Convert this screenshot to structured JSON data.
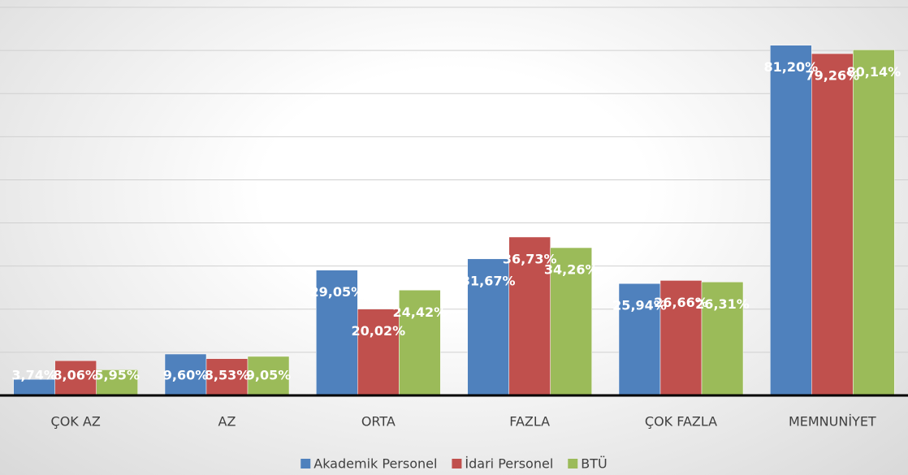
{
  "chart_data": {
    "type": "bar",
    "categories": [
      "ÇOK AZ",
      "AZ",
      "ORTA",
      "FAZLA",
      "ÇOK FAZLA",
      "MEMNUNİYET"
    ],
    "series": [
      {
        "name": "Akademik Personel",
        "color": "#4f81bd",
        "values": [
          3.74,
          9.6,
          29.05,
          31.67,
          25.94,
          81.2
        ],
        "value_labels": [
          "3,74%",
          "9,60%",
          "29,05%",
          "31,67%",
          "25,94%",
          "81,20%"
        ]
      },
      {
        "name": "İdari Personel",
        "color": "#c0504d",
        "values": [
          8.06,
          8.53,
          20.02,
          36.73,
          26.66,
          79.26
        ],
        "value_labels": [
          "8,06%",
          "8,53%",
          "20,02%",
          "36,73%",
          "26,66%",
          "79,26%"
        ]
      },
      {
        "name": "BTÜ",
        "color": "#9bbb59",
        "values": [
          5.95,
          9.05,
          24.42,
          34.26,
          26.31,
          80.14
        ],
        "value_labels": [
          "5,95%",
          "9,05%",
          "24,42%",
          "34,26%",
          "26,31%",
          "80,14%"
        ]
      }
    ],
    "ylim": [
      0,
      90
    ],
    "yticks": [
      0,
      10,
      20,
      30,
      40,
      50,
      60,
      70,
      80,
      90
    ],
    "grid": true,
    "legend": "bottom"
  }
}
